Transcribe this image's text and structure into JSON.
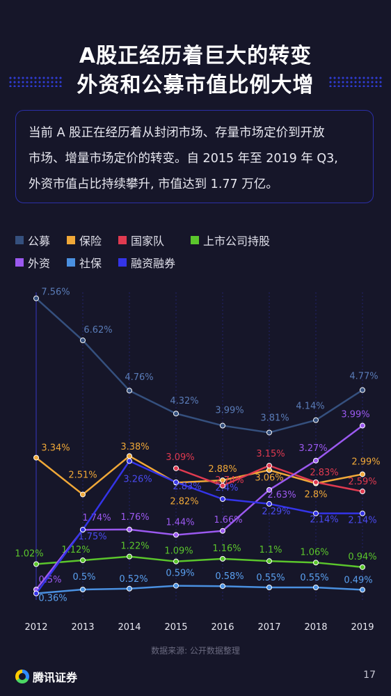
{
  "header": {
    "title_line1": "A股正经历着巨大的转变",
    "title_line2": "外资和公募市值比例大增"
  },
  "intro": {
    "line1": "当前 A 股正在经历着从封闭市场、存量市场定价到开放",
    "line2": "市场、增量市场定价的转变。自 2015 年至 2019 年 Q3,",
    "line3": "外资市值占比持续攀升, 市值达到 1.77 万亿。"
  },
  "legend": [
    {
      "name": "公募",
      "color": "#35507e"
    },
    {
      "name": "保险",
      "color": "#f0a838"
    },
    {
      "name": "国家队",
      "color": "#e03a50"
    },
    {
      "name": "上市公司持股",
      "color": "#5bc62c"
    },
    {
      "name": "外资",
      "color": "#9b59f0"
    },
    {
      "name": "社保",
      "color": "#4a90e0"
    },
    {
      "name": "融资融券",
      "color": "#3434e8"
    }
  ],
  "chart_data": {
    "type": "line",
    "x": [
      "2012",
      "2013",
      "2014",
      "2015",
      "2016",
      "2017",
      "2018",
      "2019"
    ],
    "ylabel": "",
    "series": [
      {
        "name": "公募",
        "color": "#35507e",
        "values": [
          7.56,
          6.62,
          4.76,
          4.32,
          3.99,
          3.81,
          4.14,
          4.77
        ],
        "labels": [
          "7.56%",
          "6.62%",
          "4.76%",
          "4.32%",
          "3.99%",
          "3.81%",
          "4.14%",
          "4.77%"
        ]
      },
      {
        "name": "保险",
        "color": "#f0a838",
        "values": [
          3.34,
          2.51,
          3.38,
          2.82,
          2.88,
          3.06,
          2.8,
          2.99
        ],
        "labels": [
          "3.34%",
          "2.51%",
          "3.38%",
          "2.82%",
          "2.88%",
          "3.06%",
          "2.8%",
          "2.99%"
        ]
      },
      {
        "name": "国家队",
        "color": "#e03a50",
        "values": [
          null,
          null,
          null,
          3.09,
          2.74,
          3.15,
          2.83,
          2.59
        ],
        "labels": [
          "",
          "",
          "",
          "3.09%",
          "2.74%",
          "3.15%",
          "2.83%",
          "2.59%"
        ]
      },
      {
        "name": "上市公司持股",
        "color": "#5bc62c",
        "values": [
          1.02,
          1.12,
          1.22,
          1.09,
          1.16,
          1.1,
          1.06,
          0.94
        ],
        "labels": [
          "1.02%",
          "1.12%",
          "1.22%",
          "1.09%",
          "1.16%",
          "1.1%",
          "1.06%",
          "0.94%"
        ]
      },
      {
        "name": "外资",
        "color": "#9b59f0",
        "values": [
          0.5,
          1.74,
          1.76,
          1.44,
          1.66,
          2.63,
          3.27,
          3.99
        ],
        "labels": [
          "0.5%",
          "1.74%",
          "1.76%",
          "1.44%",
          "1.66%",
          "2.63%",
          "3.27%",
          "3.99%"
        ]
      },
      {
        "name": "社保",
        "color": "#4a90e0",
        "values": [
          0.36,
          0.5,
          0.52,
          0.59,
          0.58,
          0.55,
          0.55,
          0.49
        ],
        "labels": [
          "0.36%",
          "0.5%",
          "0.52%",
          "0.59%",
          "0.58%",
          "0.55%",
          "0.55%",
          "0.49%"
        ]
      },
      {
        "name": "融资融券",
        "color": "#3434e8",
        "values": [
          0.36,
          1.75,
          3.26,
          2.83,
          2.4,
          2.29,
          2.14,
          2.14
        ],
        "labels": [
          "",
          "1.75%",
          "3.26%",
          "2.83%",
          "2.4%",
          "2.29%",
          "2.14%",
          "2.14%"
        ]
      }
    ]
  },
  "footer": {
    "source": "数据来源: 公开数据整理",
    "brand": "腾讯证券",
    "page": "17"
  }
}
